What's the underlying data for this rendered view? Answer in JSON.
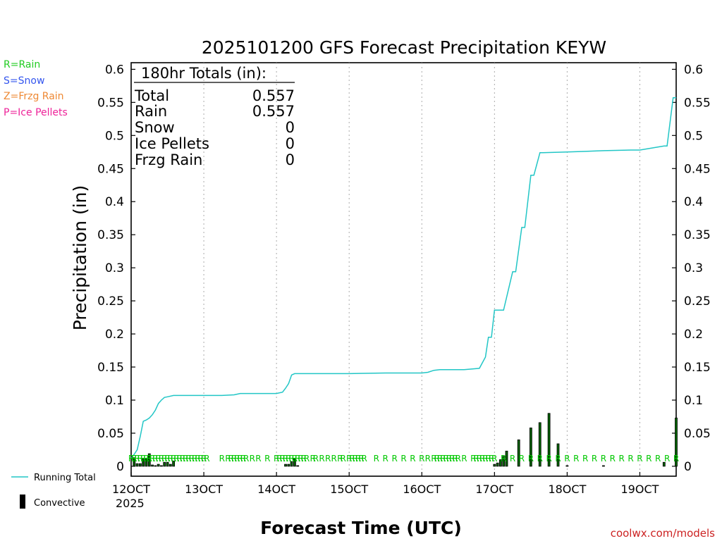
{
  "chart_data": {
    "type": "line",
    "title": "2025101200 GFS Forecast Precipitation KEYW",
    "xlabel": "Forecast Time (UTC)",
    "ylabel": "Precipitation (in)",
    "ylim": [
      -0.015,
      0.61
    ],
    "xlim": [
      0,
      180
    ],
    "y_ticks": [
      "0",
      "0.05",
      "0.1",
      "0.15",
      "0.2",
      "0.25",
      "0.3",
      "0.35",
      "0.4",
      "0.45",
      "0.5",
      "0.55",
      "0.6"
    ],
    "y_tick_values": [
      0,
      0.05,
      0.1,
      0.15,
      0.2,
      0.25,
      0.3,
      0.35,
      0.4,
      0.45,
      0.5,
      0.55,
      0.6
    ],
    "x_ticks": [
      {
        "hour": 0,
        "label": "12OCT"
      },
      {
        "hour": 24,
        "label": "13OCT"
      },
      {
        "hour": 48,
        "label": "14OCT"
      },
      {
        "hour": 72,
        "label": "15OCT"
      },
      {
        "hour": 96,
        "label": "16OCT"
      },
      {
        "hour": 120,
        "label": "17OCT"
      },
      {
        "hour": 144,
        "label": "18OCT"
      },
      {
        "hour": 168,
        "label": "19OCT"
      }
    ],
    "year_label": "2025",
    "grid": "vertical dotted",
    "series": [
      {
        "name": "Running Total",
        "color": "#22c6c6",
        "x": [
          0,
          1,
          2,
          3,
          4,
          5,
          6,
          7,
          8,
          9,
          10,
          11,
          12,
          14,
          16,
          20,
          24,
          30,
          34,
          36,
          40,
          44,
          48,
          50,
          51,
          52,
          53,
          54,
          60,
          72,
          84,
          96,
          98,
          100,
          102,
          110,
          115,
          117,
          118,
          119,
          120,
          122,
          123,
          126,
          127,
          129,
          130,
          132,
          133,
          135,
          136,
          144,
          150,
          156,
          165,
          168,
          176,
          177,
          179,
          180
        ],
        "y": [
          0.012,
          0.018,
          0.025,
          0.045,
          0.068,
          0.07,
          0.073,
          0.078,
          0.085,
          0.095,
          0.1,
          0.104,
          0.105,
          0.107,
          0.107,
          0.107,
          0.107,
          0.107,
          0.108,
          0.11,
          0.11,
          0.11,
          0.11,
          0.112,
          0.118,
          0.125,
          0.138,
          0.14,
          0.14,
          0.14,
          0.141,
          0.141,
          0.142,
          0.145,
          0.146,
          0.146,
          0.148,
          0.165,
          0.195,
          0.195,
          0.236,
          0.236,
          0.236,
          0.294,
          0.294,
          0.361,
          0.361,
          0.44,
          0.44,
          0.474,
          0.474,
          0.475,
          0.476,
          0.477,
          0.478,
          0.478,
          0.484,
          0.484,
          0.557,
          0.557
        ]
      },
      {
        "name": "Convective",
        "type": "bar",
        "color": "#006400",
        "x": [
          1,
          2,
          3,
          4,
          5,
          6,
          7,
          8,
          9,
          10,
          11,
          12,
          13,
          14,
          51,
          52,
          53,
          54,
          55,
          120,
          121,
          122,
          123,
          124,
          128,
          132,
          135,
          138,
          141,
          144,
          156,
          176,
          180
        ],
        "values": [
          0.013,
          0.004,
          0.004,
          0.011,
          0.011,
          0.019,
          0.002,
          0.001,
          0.003,
          0.001,
          0.006,
          0.006,
          0.003,
          0.008,
          0.003,
          0.003,
          0.007,
          0.012,
          0.001,
          0.003,
          0.005,
          0.01,
          0.015,
          0.023,
          0.04,
          0.058,
          0.066,
          0.08,
          0.034,
          0.001,
          0.001,
          0.006,
          0.073
        ]
      }
    ],
    "precip_type_markers": {
      "symbol": "R",
      "color": "#00c800",
      "hours": [
        0,
        1,
        2,
        3,
        4,
        5,
        6,
        7,
        8,
        9,
        10,
        11,
        12,
        13,
        14,
        15,
        16,
        17,
        18,
        19,
        20,
        21,
        22,
        23,
        24,
        25,
        30,
        32,
        33,
        34,
        35,
        36,
        37,
        38,
        40,
        42,
        45,
        48,
        49,
        50,
        51,
        52,
        53,
        54,
        55,
        56,
        57,
        58,
        60,
        61,
        63,
        65,
        67,
        69,
        70,
        72,
        73,
        74,
        75,
        76,
        77,
        81,
        84,
        87,
        90,
        93,
        96,
        98,
        100,
        101,
        102,
        103,
        104,
        105,
        106,
        107,
        108,
        110,
        113,
        114,
        115,
        116,
        117,
        118,
        119,
        120,
        123,
        126,
        129,
        132,
        135,
        138,
        141,
        144,
        147,
        150,
        153,
        156,
        159,
        162,
        165,
        168,
        171,
        174,
        177,
        180
      ]
    },
    "totals_box": {
      "heading": "180hr Totals (in):",
      "rows": [
        {
          "label": "Total",
          "value": "0.557"
        },
        {
          "label": "Rain",
          "value": "0.557"
        },
        {
          "label": "Snow",
          "value": "0"
        },
        {
          "label": "Ice Pellets",
          "value": "0"
        },
        {
          "label": "Frzg Rain",
          "value": "0"
        }
      ]
    },
    "type_legend": [
      {
        "text": "R=Rain",
        "color": "#22cc22"
      },
      {
        "text": "S=Snow",
        "color": "#3355ee"
      },
      {
        "text": "Z=Frzg Rain",
        "color": "#ee8833"
      },
      {
        "text": "P=Ice Pellets",
        "color": "#ee2299"
      }
    ],
    "bottom_legend": [
      {
        "text": "Running Total",
        "kind": "line",
        "color": "#22c6c6"
      },
      {
        "text": "Convective",
        "kind": "bar",
        "color": "#000000"
      }
    ],
    "credit": "coolwx.com/models"
  }
}
